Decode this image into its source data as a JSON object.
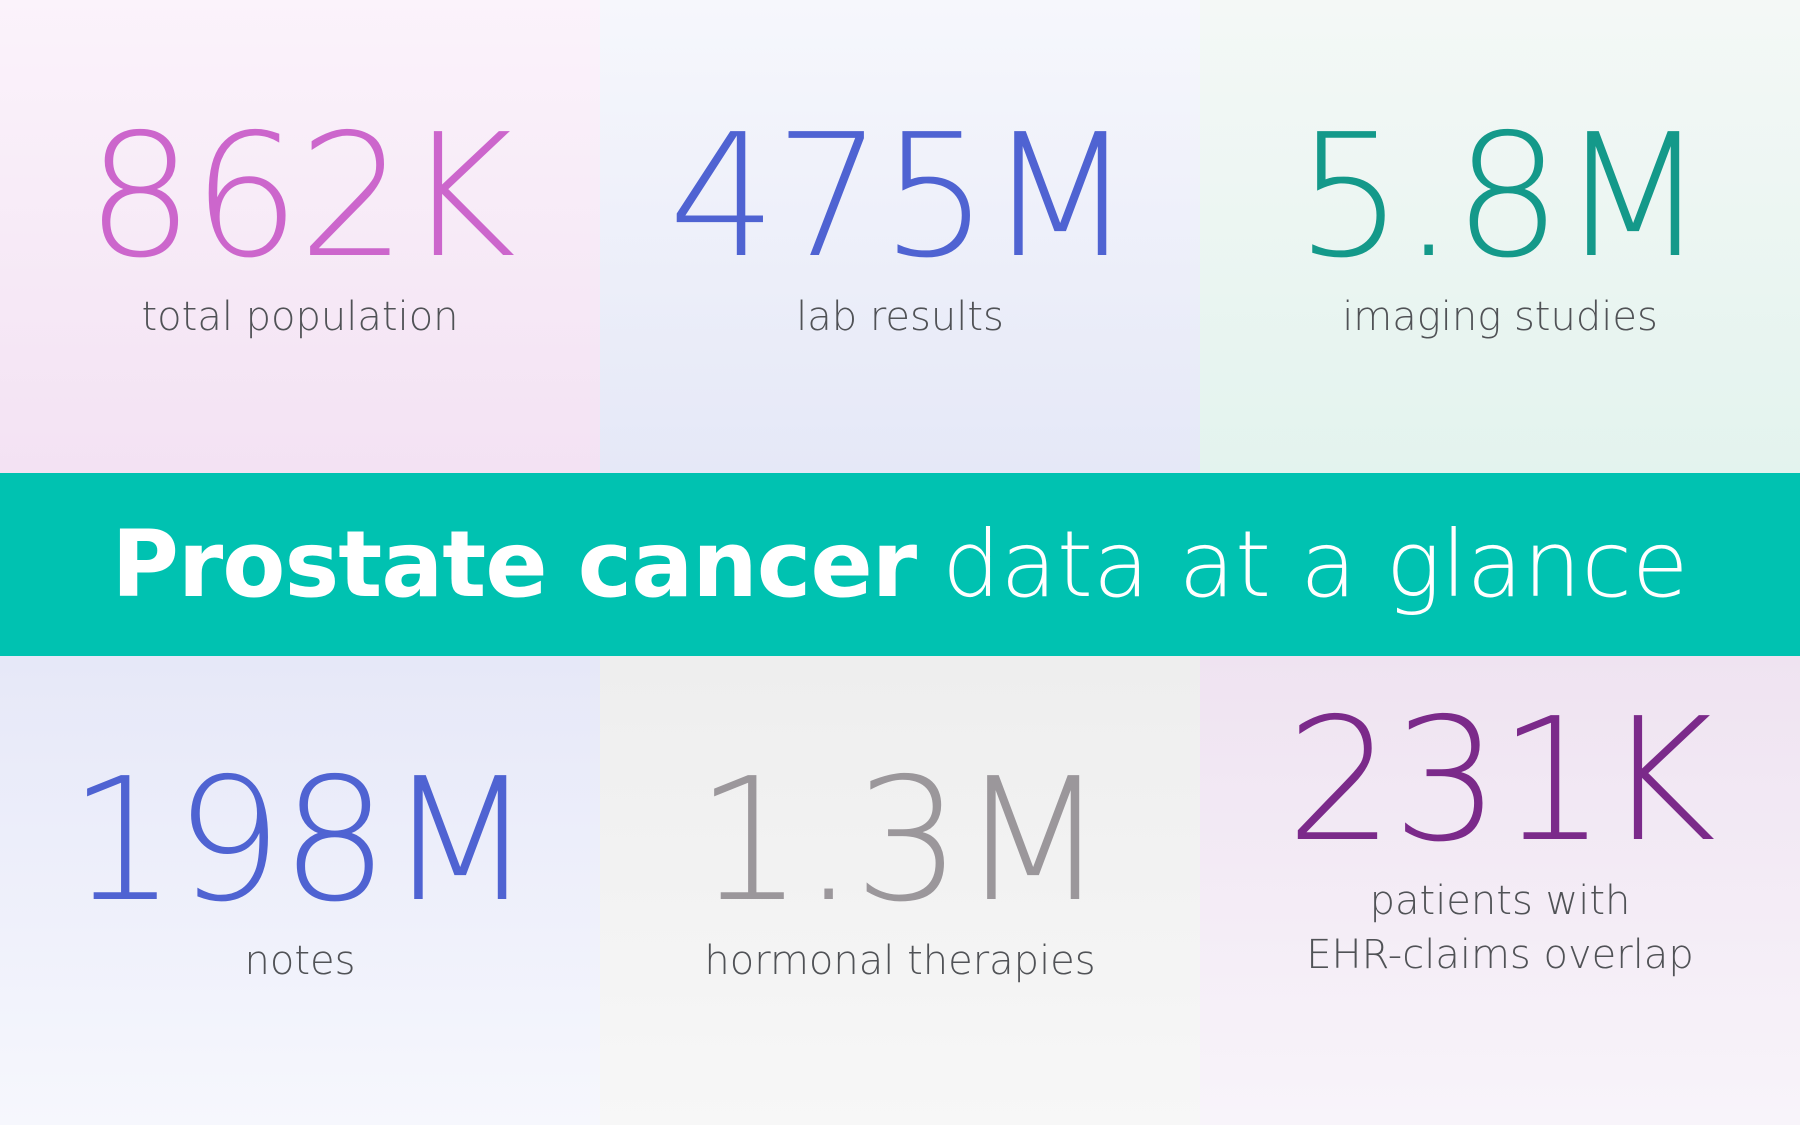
{
  "banner": {
    "title_bold": "Prostate cancer",
    "title_light": "data at a glance",
    "background": "#00c2b1",
    "text_color": "#ffffff"
  },
  "stats": [
    {
      "value": "862K",
      "label": "total population",
      "color": "#cc66cc"
    },
    {
      "value": "475M",
      "label": "lab results",
      "color": "#4f63d2"
    },
    {
      "value": "5.8M",
      "label": "imaging studies",
      "color": "#14998a"
    },
    {
      "value": "198M",
      "label": "notes",
      "color": "#4f63d2"
    },
    {
      "value": "1.3M",
      "label": "hormonal therapies",
      "color": "#9b979b"
    },
    {
      "value": "231K",
      "label_line1": "patients with",
      "label_line2": "EHR-claims overlap",
      "color": "#7b2a8a"
    }
  ]
}
